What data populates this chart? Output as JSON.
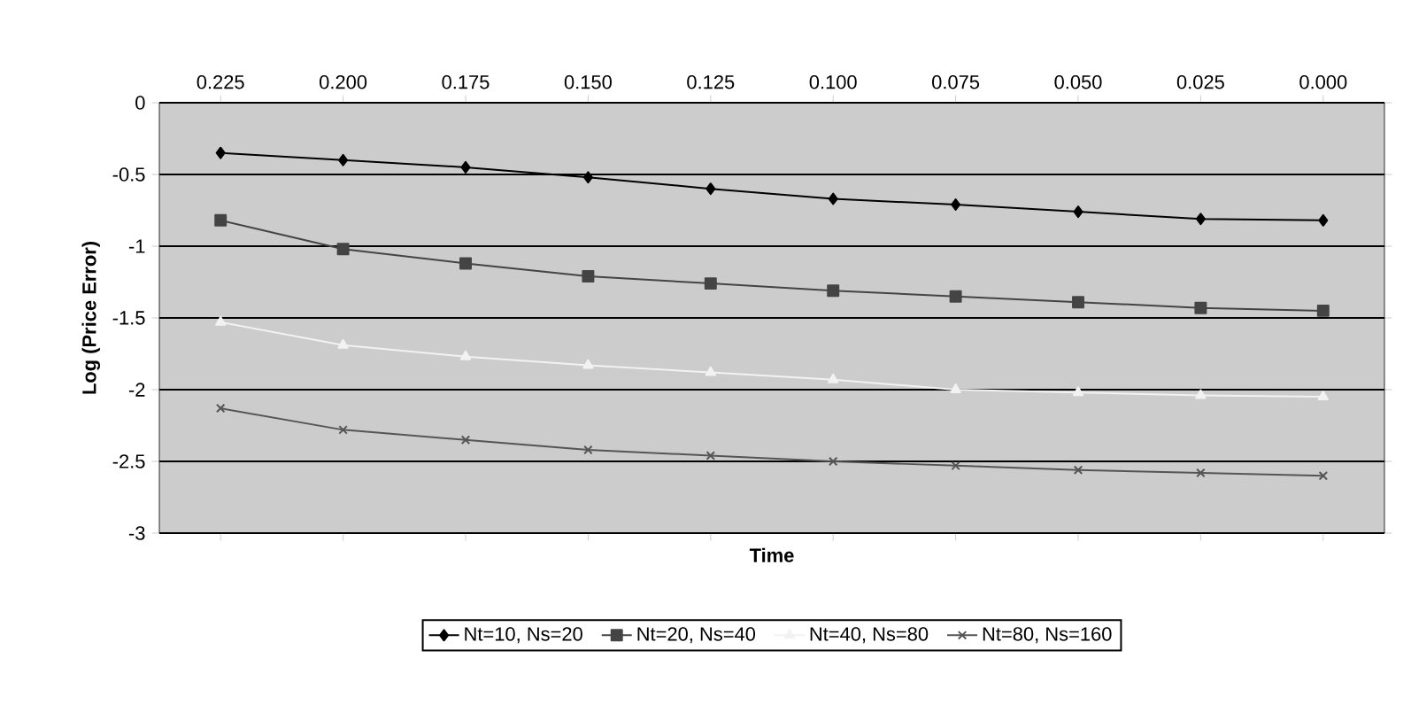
{
  "chart_data": {
    "type": "line",
    "xlabel": "Time",
    "ylabel": "Log (Price Error)",
    "categories": [
      "0.225",
      "0.200",
      "0.175",
      "0.150",
      "0.125",
      "0.100",
      "0.075",
      "0.050",
      "0.025",
      "0.000"
    ],
    "series": [
      {
        "name": "Nt=10, Ns=20",
        "color": "#000000",
        "marker": "diamond",
        "values": [
          -0.35,
          -0.4,
          -0.45,
          -0.52,
          -0.6,
          -0.67,
          -0.71,
          -0.76,
          -0.81,
          -0.82
        ]
      },
      {
        "name": "Nt=20, Ns=40",
        "color": "#444444",
        "marker": "square",
        "values": [
          -0.82,
          -1.02,
          -1.12,
          -1.21,
          -1.26,
          -1.31,
          -1.35,
          -1.39,
          -1.43,
          -1.45
        ]
      },
      {
        "name": "Nt=40, Ns=80",
        "color": "#f2f2f2",
        "marker": "triangle",
        "values": [
          -1.53,
          -1.69,
          -1.77,
          -1.83,
          -1.88,
          -1.93,
          -2.0,
          -2.02,
          -2.04,
          -2.05
        ]
      },
      {
        "name": "Nt=80, Ns=160",
        "color": "#555555",
        "marker": "cross",
        "values": [
          -2.13,
          -2.28,
          -2.35,
          -2.42,
          -2.46,
          -2.5,
          -2.53,
          -2.56,
          -2.58,
          -2.6
        ]
      }
    ],
    "ylim": [
      -3,
      0
    ],
    "yticks": [
      -3,
      -2.5,
      -2,
      -1.5,
      -1,
      -0.5,
      0
    ],
    "grid": "y",
    "legend": "bottom",
    "line_style": "solid"
  }
}
